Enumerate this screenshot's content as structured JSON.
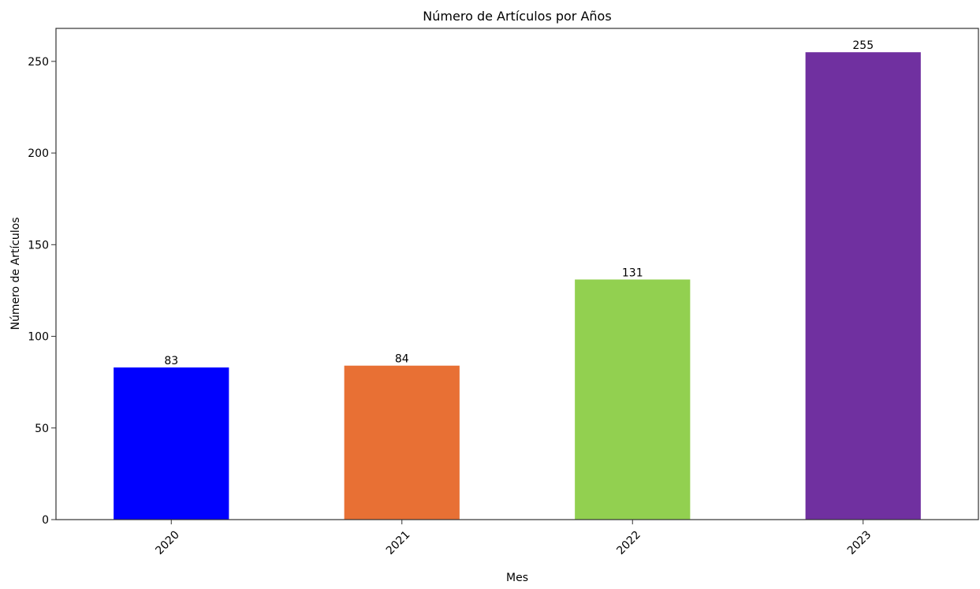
{
  "chart_data": {
    "type": "bar",
    "title": "Número de Artículos por Años",
    "xlabel": "Mes",
    "ylabel": "Número de Artículos",
    "categories": [
      "2020",
      "2021",
      "2022",
      "2023"
    ],
    "values": [
      83,
      84,
      131,
      255
    ],
    "colors": [
      "#0000ff",
      "#e87034",
      "#92d050",
      "#7030a0"
    ],
    "ylim": [
      0,
      268
    ],
    "yticks": [
      0,
      50,
      100,
      150,
      200,
      250
    ],
    "data_labels": [
      "83",
      "84",
      "131",
      "255"
    ],
    "grid": false,
    "legend": "none",
    "x_tick_rotation": -45
  }
}
